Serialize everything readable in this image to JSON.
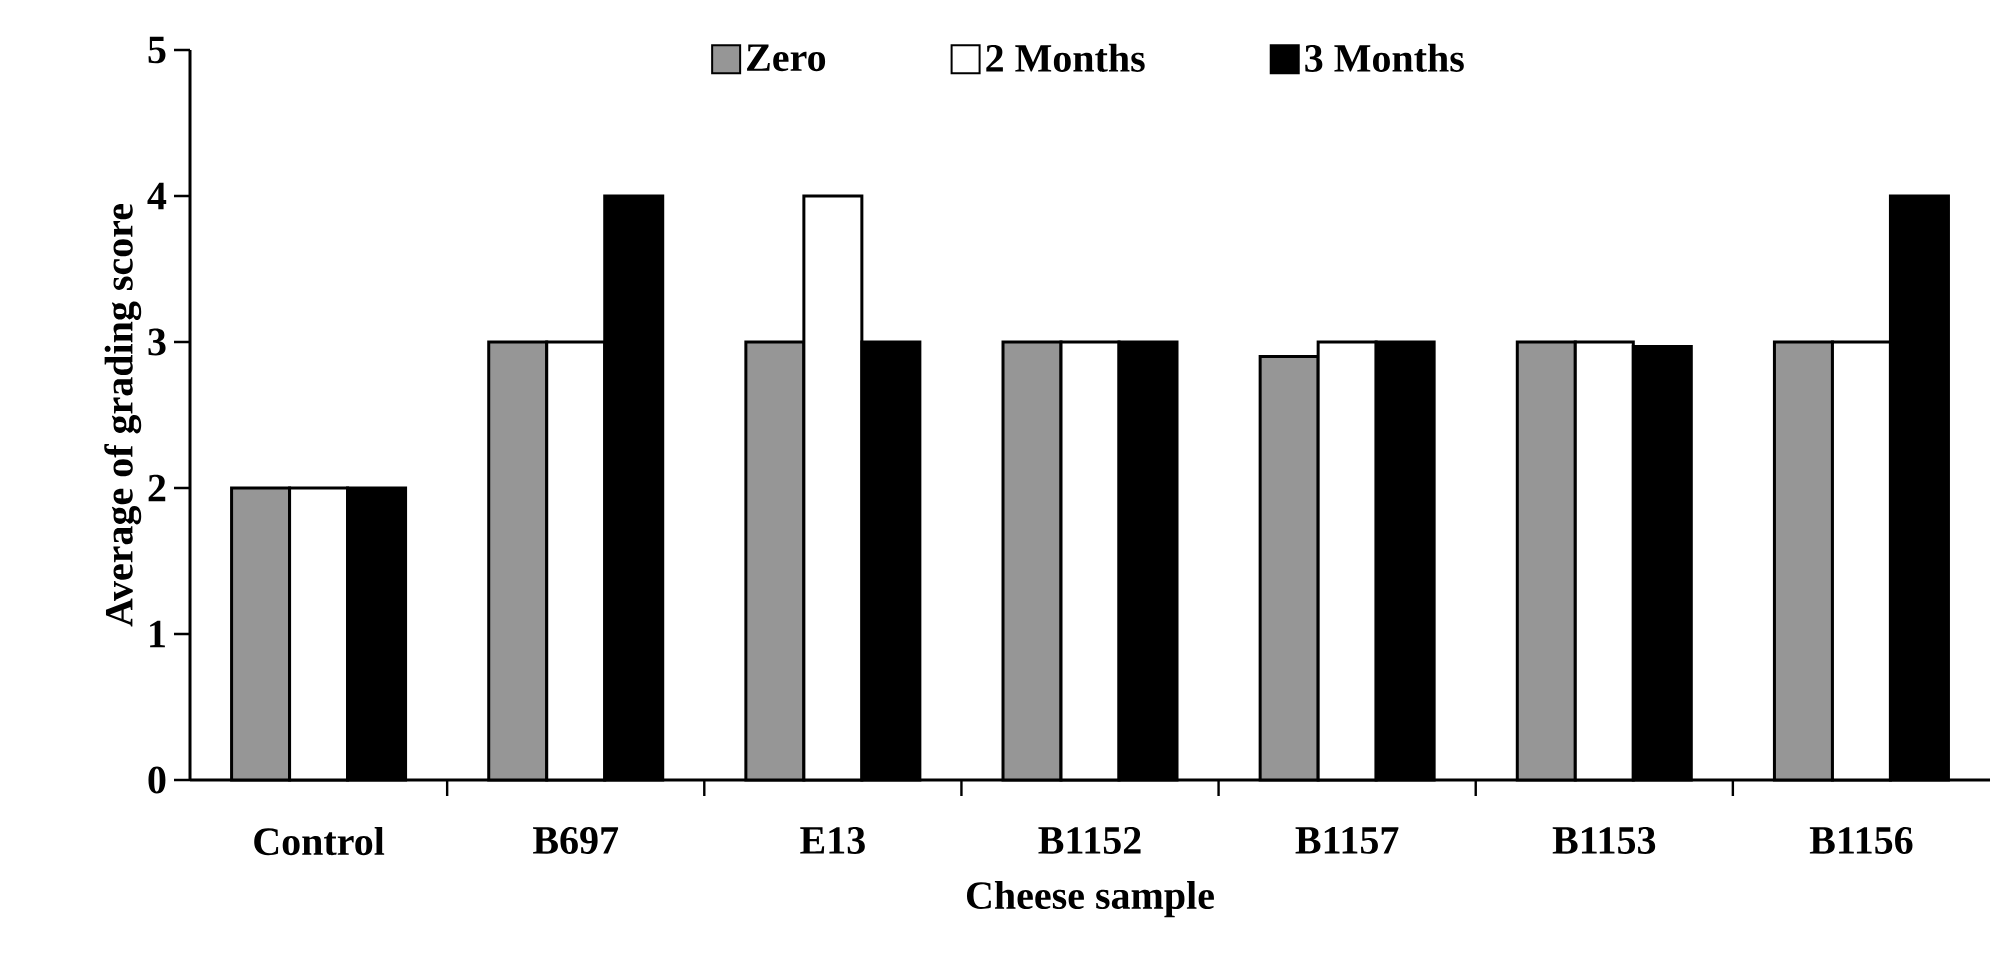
{
  "chart_data": {
    "type": "bar",
    "xlabel": "Cheese sample",
    "ylabel": "Average of grading score",
    "categories": [
      "Control",
      "B697",
      "E13",
      "B1152",
      "B1157",
      "B1153",
      "B1156"
    ],
    "series": [
      {
        "name": "Zero",
        "color": "#969696",
        "values": [
          2,
          3,
          3,
          3,
          2.9,
          3,
          3
        ]
      },
      {
        "name": "2 Months",
        "color": "#ffffff",
        "values": [
          2,
          3,
          4,
          3,
          3,
          3,
          3
        ]
      },
      {
        "name": "3 Months",
        "color": "#000000",
        "values": [
          2,
          4,
          3,
          3,
          3,
          2.97,
          4
        ]
      }
    ],
    "ylim": [
      0,
      5
    ],
    "yticks": [
      0,
      1,
      2,
      3,
      4,
      5
    ],
    "grid": false,
    "legend": "top"
  }
}
